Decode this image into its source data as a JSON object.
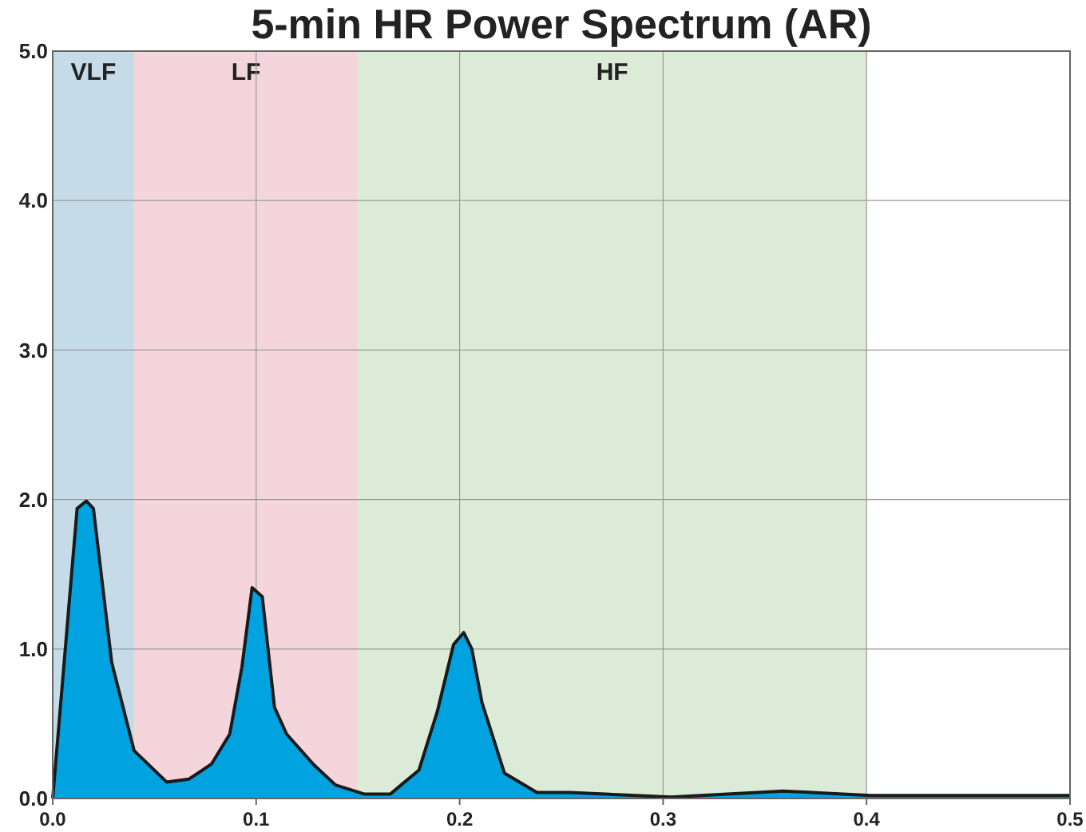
{
  "chart_data": {
    "type": "area",
    "title": "5-min HR Power Spectrum (AR)",
    "x": [
      0,
      0.012,
      0.0165,
      0.02,
      0.029,
      0.04,
      0.056,
      0.067,
      0.078,
      0.087,
      0.093,
      0.098,
      0.103,
      0.109,
      0.115,
      0.128,
      0.139,
      0.153,
      0.166,
      0.18,
      0.189,
      0.197,
      0.202,
      0.206,
      0.211,
      0.222,
      0.238,
      0.254,
      0.304,
      0.359,
      0.402,
      0.5
    ],
    "series": [
      {
        "color": "#00a3e0",
        "values": [
          0,
          1.94,
          1.99,
          1.94,
          0.91,
          0.32,
          0.11,
          0.13,
          0.23,
          0.43,
          0.88,
          1.41,
          1.35,
          0.61,
          0.43,
          0.23,
          0.09,
          0.03,
          0.03,
          0.19,
          0.58,
          1.03,
          1.11,
          1.0,
          0.64,
          0.17,
          0.04,
          0.04,
          0.01,
          0.05,
          0.02,
          0.02
        ]
      }
    ],
    "xlim": [
      0,
      0.5
    ],
    "ylim": [
      0,
      5
    ],
    "xticks": [
      {
        "value": 0,
        "label": "0.0"
      },
      0.1,
      0.2,
      0.3,
      0.4,
      0.5
    ],
    "yticks": [
      {
        "value": 0,
        "label": "0.0"
      },
      {
        "value": 1,
        "label": "1.0"
      },
      {
        "value": 2,
        "label": "2.0"
      },
      {
        "value": 3,
        "label": "3.0"
      },
      {
        "value": 4,
        "label": "4.0"
      },
      {
        "value": 5,
        "label": "5.0"
      }
    ],
    "grid": true,
    "bands": [
      {
        "axis": "x",
        "from": 0,
        "to": 0.04,
        "label": "VLF",
        "color": "#c5dbe8"
      },
      {
        "axis": "x",
        "from": 0.04,
        "to": 0.15,
        "label": "LF",
        "color": "#f3d5db"
      },
      {
        "axis": "x",
        "from": 0.15,
        "to": 0.4,
        "label": "HF",
        "color": "#dcebd8"
      }
    ]
  }
}
